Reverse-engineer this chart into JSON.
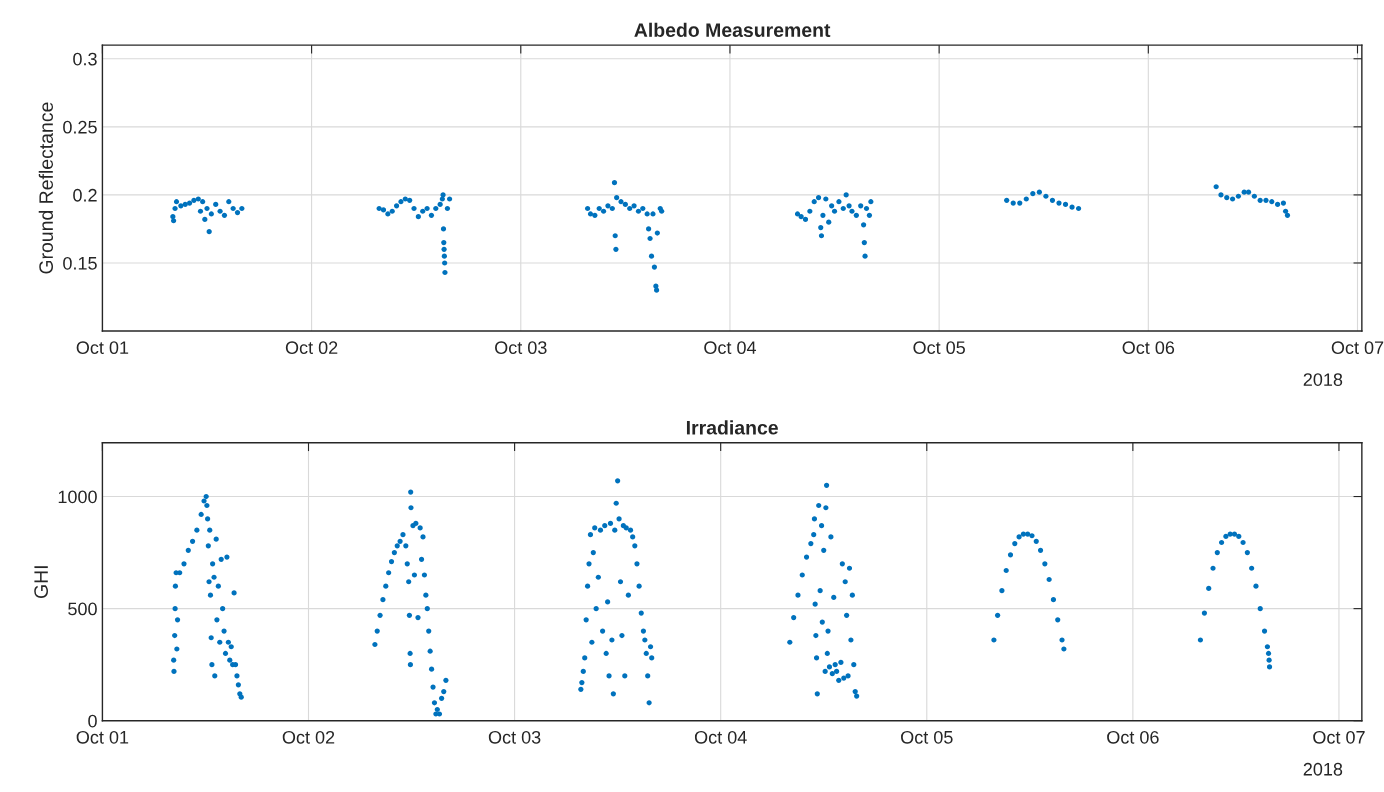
{
  "chart_data": [
    {
      "type": "scatter",
      "title": "Albedo Measurement",
      "ylabel": "Ground Reflectance",
      "annotations": [
        "2018"
      ],
      "grid": true,
      "marker": "circle",
      "xlim": [
        "2018-10-01T00:00",
        "2018-10-07T00:30"
      ],
      "xticks": [
        {
          "value": "2018-10-01",
          "label": "Oct 01"
        },
        {
          "value": "2018-10-02",
          "label": "Oct 02"
        },
        {
          "value": "2018-10-03",
          "label": "Oct 03"
        },
        {
          "value": "2018-10-04",
          "label": "Oct 04"
        },
        {
          "value": "2018-10-05",
          "label": "Oct 05"
        },
        {
          "value": "2018-10-06",
          "label": "Oct 06"
        },
        {
          "value": "2018-10-07",
          "label": "Oct 07"
        }
      ],
      "ylim": [
        0.1,
        0.31
      ],
      "yticks": [
        0.15,
        0.2,
        0.25,
        0.3
      ],
      "series": [
        {
          "color": "#0072bd",
          "x": [
            "2018-10-01T08:05",
            "2018-10-01T08:10",
            "2018-10-01T08:20",
            "2018-10-01T08:30",
            "2018-10-01T09:00",
            "2018-10-01T09:30",
            "2018-10-01T10:00",
            "2018-10-01T10:30",
            "2018-10-01T11:00",
            "2018-10-01T11:15",
            "2018-10-01T11:30",
            "2018-10-01T11:45",
            "2018-10-01T12:00",
            "2018-10-01T12:15",
            "2018-10-01T12:30",
            "2018-10-01T13:00",
            "2018-10-01T13:30",
            "2018-10-01T14:00",
            "2018-10-01T14:30",
            "2018-10-01T15:00",
            "2018-10-01T15:30",
            "2018-10-01T16:00",
            "2018-10-02T07:45",
            "2018-10-02T08:15",
            "2018-10-02T08:45",
            "2018-10-02T09:15",
            "2018-10-02T09:45",
            "2018-10-02T10:15",
            "2018-10-02T10:45",
            "2018-10-02T11:15",
            "2018-10-02T11:45",
            "2018-10-02T12:15",
            "2018-10-02T12:45",
            "2018-10-02T13:15",
            "2018-10-02T13:45",
            "2018-10-02T14:15",
            "2018-10-02T14:45",
            "2018-10-02T15:00",
            "2018-10-02T15:05",
            "2018-10-02T15:08",
            "2018-10-02T15:10",
            "2018-10-02T15:12",
            "2018-10-02T15:14",
            "2018-10-02T15:16",
            "2018-10-02T15:18",
            "2018-10-02T15:35",
            "2018-10-02T15:50",
            "2018-10-03T07:40",
            "2018-10-03T08:00",
            "2018-10-03T08:30",
            "2018-10-03T09:00",
            "2018-10-03T09:30",
            "2018-10-03T10:00",
            "2018-10-03T10:30",
            "2018-10-03T10:45",
            "2018-10-03T10:50",
            "2018-10-03T10:55",
            "2018-10-03T11:00",
            "2018-10-03T11:30",
            "2018-10-03T12:00",
            "2018-10-03T12:30",
            "2018-10-03T13:00",
            "2018-10-03T13:30",
            "2018-10-03T14:00",
            "2018-10-03T14:30",
            "2018-10-03T14:40",
            "2018-10-03T14:50",
            "2018-10-03T15:00",
            "2018-10-03T15:10",
            "2018-10-03T15:20",
            "2018-10-03T15:30",
            "2018-10-03T15:35",
            "2018-10-03T15:40",
            "2018-10-03T16:00",
            "2018-10-03T16:10",
            "2018-10-04T07:45",
            "2018-10-04T08:10",
            "2018-10-04T08:40",
            "2018-10-04T09:10",
            "2018-10-04T09:40",
            "2018-10-04T10:10",
            "2018-10-04T10:25",
            "2018-10-04T10:30",
            "2018-10-04T10:40",
            "2018-10-04T11:00",
            "2018-10-04T11:20",
            "2018-10-04T11:40",
            "2018-10-04T12:00",
            "2018-10-04T12:30",
            "2018-10-04T13:00",
            "2018-10-04T13:20",
            "2018-10-04T13:40",
            "2018-10-04T14:00",
            "2018-10-04T14:30",
            "2018-10-04T15:00",
            "2018-10-04T15:20",
            "2018-10-04T15:25",
            "2018-10-04T15:30",
            "2018-10-04T15:40",
            "2018-10-04T16:00",
            "2018-10-04T16:10",
            "2018-10-05T07:45",
            "2018-10-05T08:30",
            "2018-10-05T09:15",
            "2018-10-05T10:00",
            "2018-10-05T10:45",
            "2018-10-05T11:30",
            "2018-10-05T12:15",
            "2018-10-05T13:00",
            "2018-10-05T13:45",
            "2018-10-05T14:30",
            "2018-10-05T15:15",
            "2018-10-05T16:00",
            "2018-10-06T07:47",
            "2018-10-06T08:20",
            "2018-10-06T09:00",
            "2018-10-06T09:40",
            "2018-10-06T10:20",
            "2018-10-06T11:00",
            "2018-10-06T11:30",
            "2018-10-06T12:10",
            "2018-10-06T12:50",
            "2018-10-06T13:30",
            "2018-10-06T14:10",
            "2018-10-06T14:50",
            "2018-10-06T15:30",
            "2018-10-06T15:45",
            "2018-10-06T15:58"
          ],
          "values": [
            0.184,
            0.181,
            0.19,
            0.195,
            0.192,
            0.193,
            0.194,
            0.196,
            0.197,
            0.188,
            0.195,
            0.182,
            0.19,
            0.173,
            0.186,
            0.193,
            0.188,
            0.185,
            0.195,
            0.19,
            0.187,
            0.19,
            0.19,
            0.189,
            0.186,
            0.188,
            0.192,
            0.195,
            0.197,
            0.196,
            0.19,
            0.184,
            0.188,
            0.19,
            0.185,
            0.19,
            0.193,
            0.197,
            0.2,
            0.175,
            0.165,
            0.16,
            0.155,
            0.15,
            0.143,
            0.19,
            0.197,
            0.19,
            0.186,
            0.185,
            0.19,
            0.188,
            0.192,
            0.19,
            0.209,
            0.17,
            0.16,
            0.198,
            0.195,
            0.193,
            0.19,
            0.192,
            0.188,
            0.19,
            0.186,
            0.175,
            0.168,
            0.155,
            0.186,
            0.147,
            0.133,
            0.13,
            0.172,
            0.19,
            0.188,
            0.186,
            0.184,
            0.182,
            0.188,
            0.195,
            0.198,
            0.176,
            0.17,
            0.185,
            0.197,
            0.18,
            0.192,
            0.188,
            0.195,
            0.19,
            0.2,
            0.192,
            0.188,
            0.185,
            0.192,
            0.178,
            0.165,
            0.155,
            0.19,
            0.185,
            0.195,
            0.196,
            0.194,
            0.194,
            0.197,
            0.201,
            0.202,
            0.199,
            0.196,
            0.194,
            0.193,
            0.191,
            0.19,
            0.206,
            0.2,
            0.198,
            0.197,
            0.199,
            0.202,
            0.202,
            0.199,
            0.196,
            0.196,
            0.195,
            0.193,
            0.194,
            0.188,
            0.185
          ]
        }
      ]
    },
    {
      "type": "scatter",
      "title": "Irradiance",
      "ylabel": "GHI",
      "annotations": [
        "2018"
      ],
      "grid": true,
      "marker": "circle",
      "xlim": [
        "2018-10-01T00:00",
        "2018-10-07T02:40"
      ],
      "xticks": [
        {
          "value": "2018-10-01",
          "label": "Oct 01"
        },
        {
          "value": "2018-10-02",
          "label": "Oct 02"
        },
        {
          "value": "2018-10-03",
          "label": "Oct 03"
        },
        {
          "value": "2018-10-04",
          "label": "Oct 04"
        },
        {
          "value": "2018-10-05",
          "label": "Oct 05"
        },
        {
          "value": "2018-10-06",
          "label": "Oct 06"
        },
        {
          "value": "2018-10-07",
          "label": "Oct 07"
        }
      ],
      "ylim": [
        0,
        1240
      ],
      "yticks": [
        0,
        500,
        1000
      ],
      "series": [
        {
          "color": "#0072bd",
          "x": [
            "2018-10-01T08:18",
            "2018-10-01T08:20",
            "2018-10-01T08:25",
            "2018-10-01T08:28",
            "2018-10-01T08:30",
            "2018-10-01T08:35",
            "2018-10-01T08:40",
            "2018-10-01T08:45",
            "2018-10-01T09:00",
            "2018-10-01T09:30",
            "2018-10-01T10:00",
            "2018-10-01T10:30",
            "2018-10-01T11:00",
            "2018-10-01T11:30",
            "2018-10-01T11:50",
            "2018-10-01T12:05",
            "2018-10-01T12:10",
            "2018-10-01T12:15",
            "2018-10-01T12:20",
            "2018-10-01T12:25",
            "2018-10-01T12:30",
            "2018-10-01T12:35",
            "2018-10-01T12:40",
            "2018-10-01T12:45",
            "2018-10-01T12:50",
            "2018-10-01T13:00",
            "2018-10-01T13:05",
            "2018-10-01T13:15",
            "2018-10-01T13:20",
            "2018-10-01T13:30",
            "2018-10-01T13:40",
            "2018-10-01T13:50",
            "2018-10-01T14:00",
            "2018-10-01T14:10",
            "2018-10-01T14:20",
            "2018-10-01T14:30",
            "2018-10-01T14:40",
            "2018-10-01T14:50",
            "2018-10-01T15:00",
            "2018-10-01T15:10",
            "2018-10-01T15:20",
            "2018-10-01T15:30",
            "2018-10-01T15:40",
            "2018-10-01T15:50",
            "2018-10-01T16:00",
            "2018-10-01T16:10",
            "2018-10-02T07:44",
            "2018-10-02T08:00",
            "2018-10-02T08:20",
            "2018-10-02T08:40",
            "2018-10-02T09:00",
            "2018-10-02T09:20",
            "2018-10-02T09:40",
            "2018-10-02T10:00",
            "2018-10-02T10:20",
            "2018-10-02T10:40",
            "2018-10-02T11:00",
            "2018-10-02T11:20",
            "2018-10-02T11:30",
            "2018-10-02T11:40",
            "2018-10-02T11:45",
            "2018-10-02T11:50",
            "2018-10-02T11:52",
            "2018-10-02T11:54",
            "2018-10-02T11:56",
            "2018-10-02T12:10",
            "2018-10-02T12:20",
            "2018-10-02T12:30",
            "2018-10-02T12:45",
            "2018-10-02T13:00",
            "2018-10-02T13:10",
            "2018-10-02T13:20",
            "2018-10-02T13:30",
            "2018-10-02T13:40",
            "2018-10-02T13:50",
            "2018-10-02T14:00",
            "2018-10-02T14:10",
            "2018-10-02T14:20",
            "2018-10-02T14:30",
            "2018-10-02T14:40",
            "2018-10-02T14:50",
            "2018-10-02T15:00",
            "2018-10-02T15:15",
            "2018-10-02T15:30",
            "2018-10-02T15:45",
            "2018-10-02T16:00",
            "2018-10-03T07:43",
            "2018-10-03T07:50",
            "2018-10-03T08:00",
            "2018-10-03T08:10",
            "2018-10-03T08:20",
            "2018-10-03T08:30",
            "2018-10-03T08:40",
            "2018-10-03T08:50",
            "2018-10-03T09:00",
            "2018-10-03T09:10",
            "2018-10-03T09:20",
            "2018-10-03T09:30",
            "2018-10-03T09:45",
            "2018-10-03T10:00",
            "2018-10-03T10:15",
            "2018-10-03T10:30",
            "2018-10-03T10:40",
            "2018-10-03T10:50",
            "2018-10-03T11:00",
            "2018-10-03T11:10",
            "2018-10-03T11:20",
            "2018-10-03T11:30",
            "2018-10-03T11:40",
            "2018-10-03T11:50",
            "2018-10-03T12:00",
            "2018-10-03T12:10",
            "2018-10-03T12:20",
            "2018-10-03T12:30",
            "2018-10-03T12:40",
            "2018-10-03T12:50",
            "2018-10-03T13:00",
            "2018-10-03T13:15",
            "2018-10-03T13:30",
            "2018-10-03T13:45",
            "2018-10-03T14:00",
            "2018-10-03T14:15",
            "2018-10-03T14:30",
            "2018-10-03T14:45",
            "2018-10-03T15:00",
            "2018-10-03T15:10",
            "2018-10-03T15:20",
            "2018-10-03T15:30",
            "2018-10-03T15:40",
            "2018-10-03T15:50",
            "2018-10-03T15:58",
            "2018-10-04T08:03",
            "2018-10-04T08:30",
            "2018-10-04T09:00",
            "2018-10-04T09:30",
            "2018-10-04T10:00",
            "2018-10-04T10:30",
            "2018-10-04T10:50",
            "2018-10-04T10:55",
            "2018-10-04T11:00",
            "2018-10-04T11:05",
            "2018-10-04T11:10",
            "2018-10-04T11:15",
            "2018-10-04T11:25",
            "2018-10-04T11:35",
            "2018-10-04T11:45",
            "2018-10-04T11:50",
            "2018-10-04T12:00",
            "2018-10-04T12:10",
            "2018-10-04T12:15",
            "2018-10-04T12:20",
            "2018-10-04T12:25",
            "2018-10-04T12:30",
            "2018-10-04T12:40",
            "2018-10-04T12:50",
            "2018-10-04T13:00",
            "2018-10-04T13:10",
            "2018-10-04T13:20",
            "2018-10-04T13:30",
            "2018-10-04T13:45",
            "2018-10-04T14:00",
            "2018-10-04T14:10",
            "2018-10-04T14:20",
            "2018-10-04T14:30",
            "2018-10-04T14:40",
            "2018-10-04T14:50",
            "2018-10-04T15:00",
            "2018-10-04T15:10",
            "2018-10-04T15:20",
            "2018-10-04T15:30",
            "2018-10-04T15:40",
            "2018-10-04T15:50",
            "2018-10-05T07:49",
            "2018-10-05T08:15",
            "2018-10-05T08:45",
            "2018-10-05T09:15",
            "2018-10-05T09:45",
            "2018-10-05T10:15",
            "2018-10-05T10:45",
            "2018-10-05T11:15",
            "2018-10-05T11:45",
            "2018-10-05T12:15",
            "2018-10-05T12:45",
            "2018-10-05T13:15",
            "2018-10-05T13:45",
            "2018-10-05T14:15",
            "2018-10-05T14:45",
            "2018-10-05T15:15",
            "2018-10-05T15:45",
            "2018-10-05T15:58",
            "2018-10-06T07:52",
            "2018-10-06T08:20",
            "2018-10-06T08:50",
            "2018-10-06T09:20",
            "2018-10-06T09:50",
            "2018-10-06T10:20",
            "2018-10-06T10:50",
            "2018-10-06T11:20",
            "2018-10-06T11:50",
            "2018-10-06T12:20",
            "2018-10-06T12:50",
            "2018-10-06T13:20",
            "2018-10-06T13:50",
            "2018-10-06T14:20",
            "2018-10-06T14:50",
            "2018-10-06T15:20",
            "2018-10-06T15:40",
            "2018-10-06T15:48",
            "2018-10-06T15:52",
            "2018-10-06T15:55"
          ],
          "values": [
            270,
            220,
            380,
            500,
            600,
            660,
            320,
            450,
            660,
            700,
            760,
            800,
            850,
            920,
            980,
            1000,
            960,
            900,
            780,
            620,
            850,
            560,
            370,
            250,
            700,
            640,
            200,
            810,
            450,
            600,
            350,
            720,
            500,
            400,
            300,
            730,
            350,
            270,
            330,
            250,
            570,
            250,
            200,
            160,
            120,
            105,
            340,
            400,
            470,
            540,
            600,
            660,
            710,
            750,
            780,
            800,
            830,
            780,
            700,
            620,
            470,
            300,
            250,
            1020,
            950,
            870,
            650,
            880,
            460,
            860,
            720,
            820,
            650,
            560,
            500,
            400,
            310,
            230,
            150,
            80,
            30,
            50,
            30,
            100,
            130,
            180,
            140,
            170,
            220,
            280,
            450,
            600,
            700,
            830,
            350,
            750,
            860,
            500,
            640,
            850,
            400,
            870,
            300,
            530,
            200,
            880,
            360,
            120,
            850,
            970,
            1070,
            900,
            620,
            380,
            870,
            200,
            860,
            560,
            850,
            820,
            780,
            700,
            600,
            480,
            400,
            360,
            300,
            200,
            80,
            330,
            280,
            350,
            460,
            560,
            650,
            730,
            790,
            830,
            900,
            520,
            380,
            280,
            120,
            960,
            580,
            870,
            440,
            760,
            220,
            950,
            1050,
            300,
            400,
            240,
            820,
            210,
            550,
            250,
            220,
            180,
            260,
            700,
            190,
            620,
            470,
            200,
            680,
            360,
            560,
            250,
            130,
            110,
            360,
            470,
            580,
            670,
            740,
            790,
            820,
            832,
            832,
            825,
            800,
            760,
            700,
            630,
            540,
            450,
            360,
            320,
            360,
            480,
            590,
            680,
            750,
            795,
            822,
            832,
            832,
            822,
            795,
            750,
            680,
            600,
            500,
            400,
            330,
            300,
            270,
            240
          ]
        }
      ]
    }
  ]
}
